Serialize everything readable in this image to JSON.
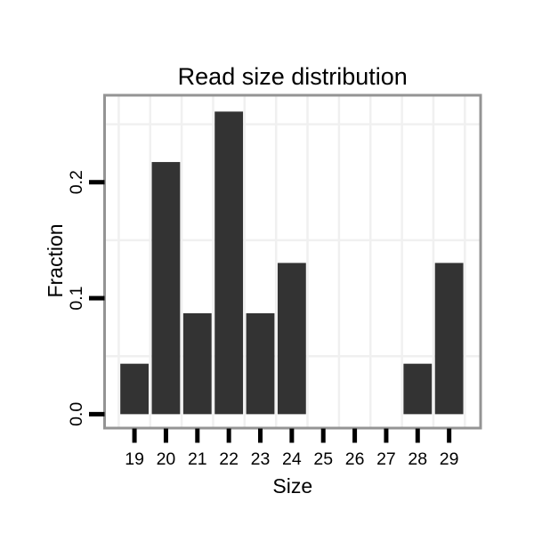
{
  "chart_data": {
    "type": "bar",
    "title": "Read size distribution",
    "xlabel": "Size",
    "ylabel": "Fraction",
    "categories": [
      19,
      20,
      21,
      22,
      23,
      24,
      25,
      26,
      27,
      28,
      29
    ],
    "values": [
      0.0435,
      0.2174,
      0.087,
      0.2609,
      0.087,
      0.1304,
      0,
      0,
      0,
      0.0435,
      0.1304
    ],
    "x_tick_labels": [
      "19",
      "20",
      "21",
      "22",
      "23",
      "24",
      "25",
      "26",
      "27",
      "28",
      "29"
    ],
    "y_tick_values": [
      0,
      0.1,
      0.2
    ],
    "y_tick_labels": [
      "0.0",
      "0.1",
      "0.2"
    ],
    "xlim": [
      18.05,
      30.0
    ],
    "ylim": [
      -0.012,
      0.275
    ],
    "bar_width": 0.9,
    "grid": {
      "vertical_lines": [
        18.5,
        19.5,
        20.5,
        21.5,
        22.5,
        23.5,
        24.5,
        25.5,
        26.5,
        27.5,
        28.5,
        29.5
      ],
      "horizontal_lines": [
        0.05,
        0.15,
        0.25
      ],
      "legend_position": "none"
    },
    "colors": {
      "bar": "#333333",
      "grid": "#f0f0f0",
      "panel_border": "#949494",
      "panel_background": "#ffffff",
      "tick": "#000000",
      "text": "#000000",
      "background": "#ffffff"
    }
  }
}
